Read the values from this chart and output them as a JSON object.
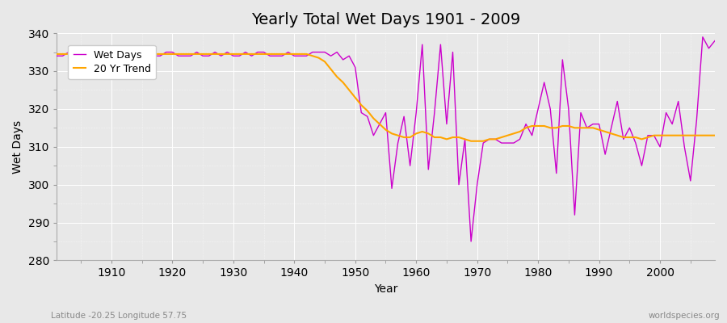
{
  "title": "Yearly Total Wet Days 1901 - 2009",
  "xlabel": "Year",
  "ylabel": "Wet Days",
  "subtitle": "Latitude -20.25 Longitude 57.75",
  "watermark": "worldspecies.org",
  "years": [
    1901,
    1902,
    1903,
    1904,
    1905,
    1906,
    1907,
    1908,
    1909,
    1910,
    1911,
    1912,
    1913,
    1914,
    1915,
    1916,
    1917,
    1918,
    1919,
    1920,
    1921,
    1922,
    1923,
    1924,
    1925,
    1926,
    1927,
    1928,
    1929,
    1930,
    1931,
    1932,
    1933,
    1934,
    1935,
    1936,
    1937,
    1938,
    1939,
    1940,
    1941,
    1942,
    1943,
    1944,
    1945,
    1946,
    1947,
    1948,
    1949,
    1950,
    1951,
    1952,
    1953,
    1954,
    1955,
    1956,
    1957,
    1958,
    1959,
    1960,
    1961,
    1962,
    1963,
    1964,
    1965,
    1966,
    1967,
    1968,
    1969,
    1970,
    1971,
    1972,
    1973,
    1974,
    1975,
    1976,
    1977,
    1978,
    1979,
    1980,
    1981,
    1982,
    1983,
    1984,
    1985,
    1986,
    1987,
    1988,
    1989,
    1990,
    1991,
    1992,
    1993,
    1994,
    1995,
    1996,
    1997,
    1998,
    1999,
    2000,
    2001,
    2002,
    2003,
    2004,
    2005,
    2006,
    2007,
    2008,
    2009
  ],
  "wet_days": [
    334,
    334,
    335,
    334,
    334,
    335,
    334,
    335,
    334,
    335,
    335,
    334,
    335,
    334,
    335,
    335,
    334,
    334,
    335,
    335,
    334,
    334,
    334,
    335,
    334,
    334,
    335,
    334,
    335,
    334,
    334,
    335,
    334,
    335,
    335,
    334,
    334,
    334,
    335,
    334,
    334,
    334,
    335,
    335,
    335,
    334,
    335,
    333,
    334,
    331,
    319,
    318,
    313,
    316,
    319,
    299,
    311,
    318,
    305,
    319,
    337,
    304,
    319,
    337,
    316,
    335,
    300,
    312,
    285,
    300,
    311,
    312,
    312,
    311,
    311,
    311,
    312,
    316,
    313,
    320,
    327,
    320,
    303,
    333,
    320,
    292,
    319,
    315,
    316,
    316,
    308,
    315,
    322,
    312,
    315,
    311,
    305,
    313,
    313,
    310,
    319,
    316,
    322,
    310,
    301,
    317,
    339,
    336,
    338
  ],
  "trend_years": [
    1901,
    1902,
    1903,
    1904,
    1905,
    1906,
    1907,
    1908,
    1909,
    1910,
    1911,
    1912,
    1913,
    1914,
    1915,
    1916,
    1917,
    1918,
    1919,
    1920,
    1921,
    1922,
    1923,
    1924,
    1925,
    1926,
    1927,
    1928,
    1929,
    1930,
    1931,
    1932,
    1933,
    1934,
    1935,
    1936,
    1937,
    1938,
    1939,
    1940,
    1941,
    1942,
    1943,
    1944,
    1945,
    1946,
    1947,
    1948,
    1949,
    1950,
    1951,
    1952,
    1953,
    1954,
    1955,
    1956,
    1957,
    1958,
    1959,
    1960,
    1961,
    1962,
    1963,
    1964,
    1965,
    1966,
    1967,
    1968,
    1969,
    1970,
    1971,
    1972,
    1973,
    1974,
    1975,
    1976,
    1977,
    1978,
    1979,
    1980,
    1981,
    1982,
    1983,
    1984,
    1985,
    1986,
    1987,
    1988,
    1989,
    1990,
    1991,
    1992,
    1993,
    1994,
    1995,
    1996,
    1997,
    1998,
    1999,
    2000,
    2001,
    2002,
    2003,
    2004,
    2005,
    2006,
    2007,
    2008,
    2009
  ],
  "trend_values": [
    334.5,
    334.5,
    334.5,
    334.5,
    334.5,
    334.5,
    334.5,
    334.5,
    334.5,
    334.5,
    334.5,
    334.5,
    334.5,
    334.5,
    334.5,
    334.5,
    334.5,
    334.5,
    334.5,
    334.5,
    334.5,
    334.5,
    334.5,
    334.5,
    334.5,
    334.5,
    334.5,
    334.5,
    334.5,
    334.5,
    334.5,
    334.5,
    334.5,
    334.5,
    334.5,
    334.5,
    334.5,
    334.5,
    334.5,
    334.5,
    334.5,
    334.5,
    334.0,
    333.5,
    332.5,
    330.5,
    328.5,
    327.0,
    325.0,
    323.0,
    321.0,
    319.5,
    317.5,
    316.0,
    314.5,
    313.5,
    313.0,
    312.5,
    312.5,
    313.5,
    314.0,
    313.5,
    312.5,
    312.5,
    312.0,
    312.5,
    312.5,
    312.0,
    311.5,
    311.5,
    311.5,
    312.0,
    312.0,
    312.5,
    313.0,
    313.5,
    314.0,
    315.0,
    315.5,
    315.5,
    315.5,
    315.0,
    315.0,
    315.5,
    315.5,
    315.0,
    315.0,
    315.0,
    315.0,
    314.5,
    314.0,
    313.5,
    313.0,
    312.5,
    312.5,
    312.5,
    312.0,
    312.5,
    313.0,
    313.0,
    313.0,
    313.0,
    313.0,
    313.0,
    313.0,
    313.0,
    313.0,
    313.0,
    313.0
  ],
  "wet_days_color": "#CC00CC",
  "trend_color": "#FFA500",
  "bg_color": "#e8e8e8",
  "plot_bg_color": "#e8e8e8",
  "ylim": [
    280,
    340
  ],
  "xlim": [
    1901,
    2009
  ],
  "yticks": [
    280,
    290,
    300,
    310,
    320,
    330,
    340
  ],
  "xticks": [
    1910,
    1920,
    1930,
    1940,
    1950,
    1960,
    1970,
    1980,
    1990,
    2000
  ],
  "title_fontsize": 14,
  "axis_fontsize": 10,
  "legend_fontsize": 9
}
